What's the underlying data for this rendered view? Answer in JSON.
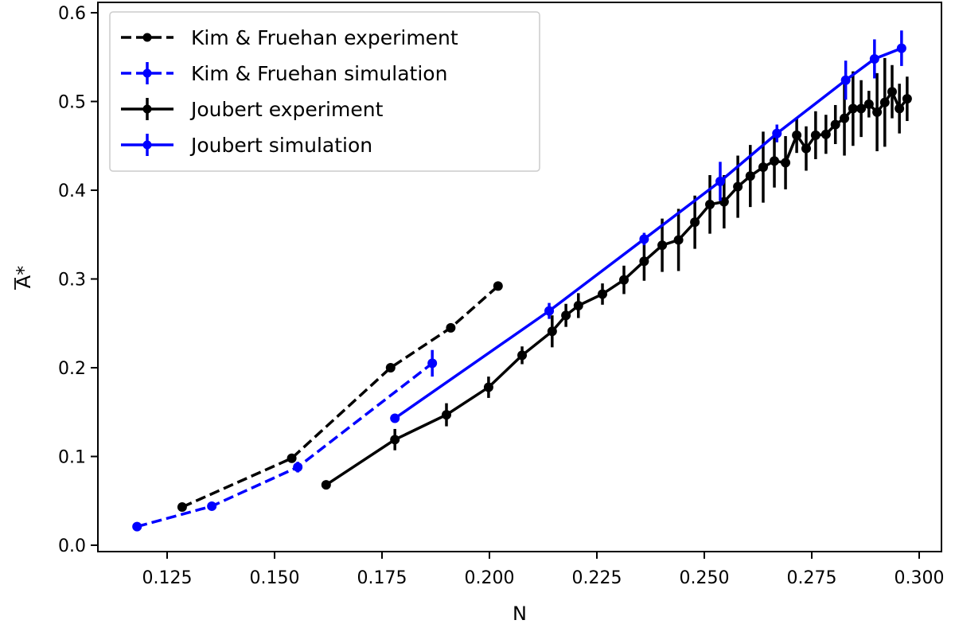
{
  "chart_data": {
    "type": "line",
    "title": "",
    "xlabel": "N",
    "ylabel": "A*",
    "xlim": [
      0.111,
      0.3045
    ],
    "ylim": [
      -0.0075,
      0.614
    ],
    "xticks": [
      0.125,
      0.15,
      0.175,
      0.2,
      0.225,
      0.25,
      0.275,
      0.3
    ],
    "xtick_labels": [
      "0.125",
      "0.150",
      "0.175",
      "0.200",
      "0.225",
      "0.250",
      "0.275",
      "0.300"
    ],
    "yticks": [
      0.0,
      0.1,
      0.2,
      0.3,
      0.4,
      0.5,
      0.6
    ],
    "ytick_labels": [
      "0.0",
      "0.1",
      "0.2",
      "0.3",
      "0.4",
      "0.5",
      "0.6"
    ],
    "grid": false,
    "legend_position": "top-left",
    "series": [
      {
        "name": "Kim & Fruehan experiment",
        "color": "#000000",
        "style": "dashed",
        "x": [
          0.1285,
          0.154,
          0.177,
          0.191,
          0.202
        ],
        "y": [
          0.043,
          0.098,
          0.2,
          0.245,
          0.292
        ],
        "yerr": [
          0,
          0,
          0,
          0,
          0
        ]
      },
      {
        "name": "Kim & Fruehan simulation",
        "color": "#0000ff",
        "style": "dashed",
        "x": [
          0.118,
          0.1354,
          0.1554,
          0.1867
        ],
        "y": [
          0.021,
          0.044,
          0.088,
          0.205
        ],
        "yerr": [
          0.002,
          0.003,
          0.006,
          0.015
        ]
      },
      {
        "name": "Joubert experiment",
        "color": "#000000",
        "style": "solid",
        "x": [
          0.162,
          0.178,
          0.19,
          0.1998,
          0.2076,
          0.2146,
          0.2178,
          0.2207,
          0.2263,
          0.2313,
          0.236,
          0.2402,
          0.244,
          0.2478,
          0.2513,
          0.2546,
          0.2578,
          0.2607,
          0.2637,
          0.2663,
          0.2689,
          0.2715,
          0.2737,
          0.2759,
          0.2783,
          0.2805,
          0.2826,
          0.2846,
          0.2865,
          0.2883,
          0.2902,
          0.292,
          0.2937,
          0.2954,
          0.2972
        ],
        "y": [
          0.068,
          0.119,
          0.147,
          0.178,
          0.214,
          0.241,
          0.259,
          0.27,
          0.283,
          0.299,
          0.32,
          0.338,
          0.344,
          0.364,
          0.384,
          0.387,
          0.404,
          0.416,
          0.426,
          0.433,
          0.431,
          0.462,
          0.447,
          0.462,
          0.463,
          0.474,
          0.481,
          0.492,
          0.492,
          0.497,
          0.488,
          0.499,
          0.511,
          0.492,
          0.503
        ],
        "yerr": [
          0.003,
          0.012,
          0.013,
          0.012,
          0.01,
          0.018,
          0.013,
          0.014,
          0.012,
          0.016,
          0.022,
          0.03,
          0.035,
          0.03,
          0.033,
          0.03,
          0.035,
          0.035,
          0.04,
          0.03,
          0.03,
          0.02,
          0.025,
          0.027,
          0.022,
          0.022,
          0.042,
          0.042,
          0.032,
          0.015,
          0.044,
          0.05,
          0.03,
          0.028,
          0.025
        ]
      },
      {
        "name": "Joubert simulation",
        "color": "#0000ff",
        "style": "solid",
        "x": [
          0.178,
          0.2139,
          0.236,
          0.2537,
          0.2669,
          0.2829,
          0.2896,
          0.2959
        ],
        "y": [
          0.143,
          0.264,
          0.345,
          0.41,
          0.464,
          0.524,
          0.548,
          0.56
        ],
        "yerr": [
          0.002,
          0.009,
          0.007,
          0.022,
          0.01,
          0.022,
          0.022,
          0.02
        ]
      }
    ]
  }
}
